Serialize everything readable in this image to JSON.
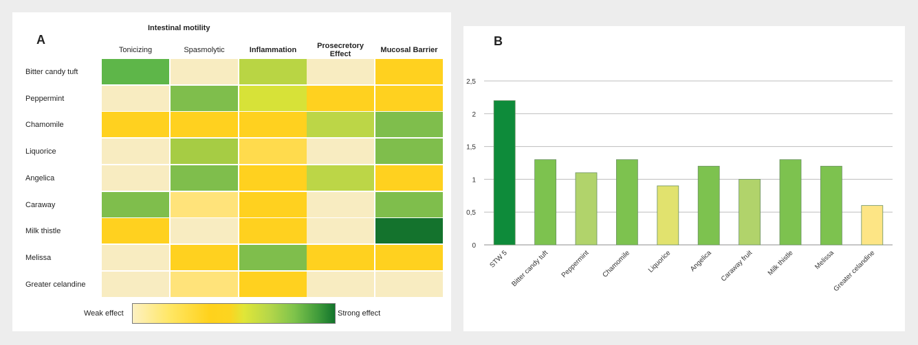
{
  "chart_data": [
    {
      "type": "heatmap",
      "panel_label": "A",
      "group_header": "Intestinal motility",
      "columns": [
        "Tonicizing",
        "Spasmolytic",
        "Inflammation",
        "Prosecretory Effect",
        "Mucosal Barrier"
      ],
      "rows": [
        "Bitter candy tuft",
        "Peppermint",
        "Chamomile",
        "Liquorice",
        "Angelica",
        "Caraway",
        "Milk thistle",
        "Melissa",
        "Greater celandine"
      ],
      "cell_colors": [
        [
          "#5eb649",
          "#f8ecc1",
          "#b9d544",
          "#f8ecc1",
          "#ffd11f"
        ],
        [
          "#f8ecc1",
          "#7fbe4c",
          "#d7e238",
          "#ffd11f",
          "#ffd11f"
        ],
        [
          "#ffd11f",
          "#ffd11f",
          "#ffd11f",
          "#bcd647",
          "#7fbe4c"
        ],
        [
          "#f8ecc1",
          "#a6cc44",
          "#ffdb4d",
          "#f8ecc1",
          "#7fbe4c"
        ],
        [
          "#f8ecc1",
          "#7fbe4c",
          "#ffd11f",
          "#bcd647",
          "#ffd11f"
        ],
        [
          "#7fbe4c",
          "#ffe37a",
          "#ffd11f",
          "#f8ecc1",
          "#7fbe4c"
        ],
        [
          "#ffd11f",
          "#f8ecc1",
          "#ffd11f",
          "#f8ecc1",
          "#14732d"
        ],
        [
          "#f8ecc1",
          "#ffd11f",
          "#7fbe4c",
          "#ffd11f",
          "#ffd11f"
        ],
        [
          "#f8ecc1",
          "#ffe37a",
          "#ffd11f",
          "#f8ecc1",
          "#f8ecc1"
        ]
      ],
      "legend": {
        "low_label": "Weak effect",
        "high_label": "Strong effect"
      }
    },
    {
      "type": "bar",
      "panel_label": "B",
      "categories": [
        "STW 5",
        "Bitter candy tuft",
        "Peppermint",
        "Chamomile",
        "Liquorice",
        "Angelica",
        "Caraway fruit",
        "Milk thistle",
        "Melissa",
        "Greater celandine"
      ],
      "values": [
        2.2,
        1.3,
        1.1,
        1.3,
        0.9,
        1.2,
        1.0,
        1.3,
        1.2,
        0.6
      ],
      "bar_colors": [
        "#0e8b3a",
        "#7dc24f",
        "#b1d36b",
        "#7dc24f",
        "#e1e26e",
        "#7dc24f",
        "#b1d36b",
        "#7dc24f",
        "#7dc24f",
        "#fde585"
      ],
      "ylim": [
        0,
        2.5
      ],
      "yticks": [
        "0",
        "0,5",
        "1",
        "1,5",
        "2",
        "2,5"
      ],
      "grid": true
    }
  ]
}
